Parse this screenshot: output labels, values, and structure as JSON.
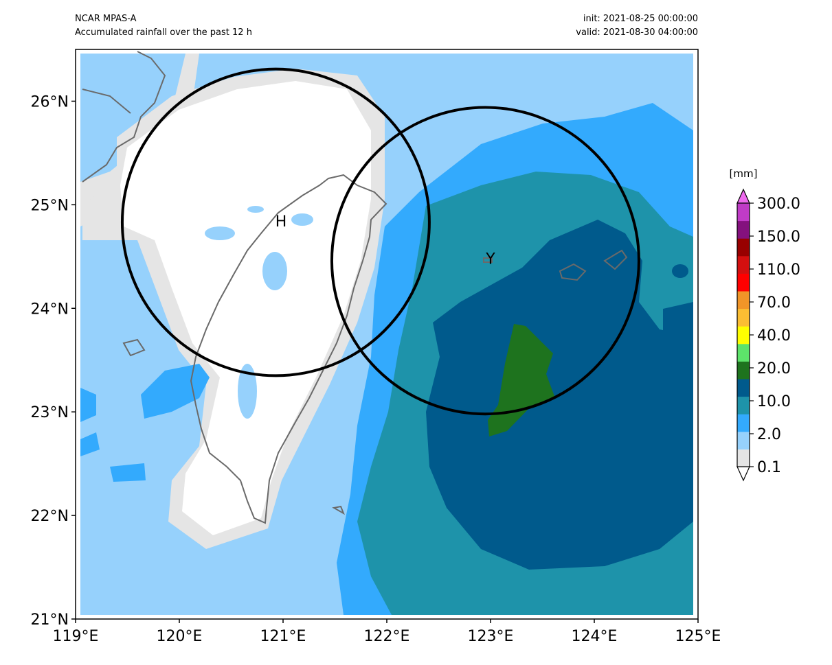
{
  "header": {
    "source": "NCAR MPAS-A",
    "description": "Accumulated rainfall over the past 12 h",
    "init": "init: 2021-08-25 00:00:00",
    "valid": "valid: 2021-08-30 04:00:00"
  },
  "map": {
    "lon_range": [
      119,
      125
    ],
    "lat_range": [
      21,
      26.5
    ],
    "xticks": [
      "119°E",
      "120°E",
      "121°E",
      "122°E",
      "123°E",
      "124°E",
      "125°E"
    ],
    "yticks": [
      "21°N",
      "22°N",
      "23°N",
      "24°N",
      "25°N",
      "26°N"
    ],
    "markers": [
      {
        "label": "H",
        "lon": 120.98,
        "lat": 24.83
      },
      {
        "label": "Y",
        "lon": 123.0,
        "lat": 24.47
      }
    ],
    "circles": [
      {
        "center_lon": 120.93,
        "center_lat": 24.83,
        "radius_deg": 1.48
      },
      {
        "center_lon": 122.95,
        "center_lat": 24.46,
        "radius_deg": 1.48
      }
    ]
  },
  "colorbar": {
    "unit": "[mm]",
    "tick_labels": [
      "0.1",
      "2.0",
      "10.0",
      "20.0",
      "40.0",
      "70.0",
      "110.0",
      "150.0",
      "300.0"
    ],
    "colors": [
      "#ffffff",
      "#e5e5e5",
      "#96d1fc",
      "#33aafd",
      "#1e93aa",
      "#005a8c",
      "#1e731e",
      "#5de36a",
      "#ffff00",
      "#fbbe33",
      "#f19528",
      "#ff0000",
      "#d40f0f",
      "#980000",
      "#84117e",
      "#c03bc7",
      "#ee6aee"
    ],
    "extend": "both"
  }
}
